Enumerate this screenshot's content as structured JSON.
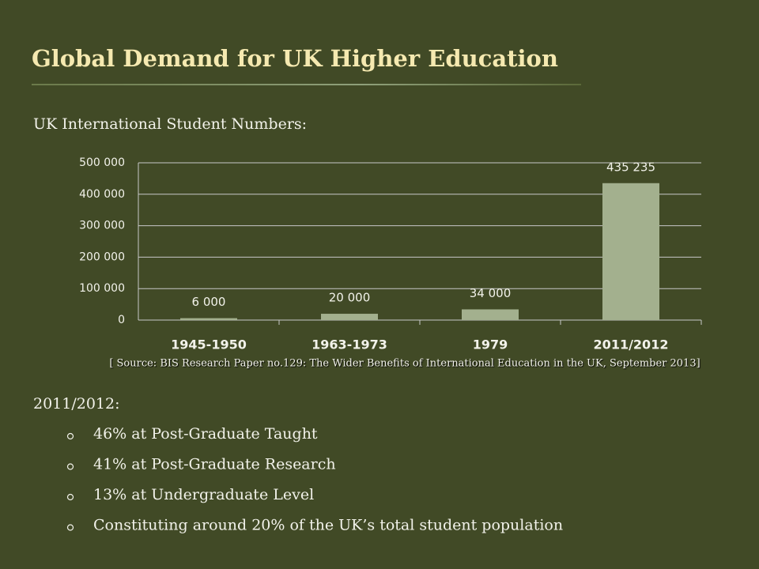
{
  "title": "Global Demand for UK Higher Education",
  "subtitle": "UK International Student Numbers:",
  "chart_data": {
    "type": "bar",
    "categories": [
      "1945-1950",
      "1963-1973",
      "1979",
      "2011/2012"
    ],
    "values": [
      6000,
      20000,
      34000,
      435235
    ],
    "value_labels": [
      "6 000",
      "20 000",
      "34 000",
      "435 235"
    ],
    "color": "#a3b08e",
    "ylim": [
      0,
      500000
    ],
    "yticks": [
      0,
      {
        "value": 100000,
        "label": "100 000"
      },
      {
        "value": 200000,
        "label": "200 000"
      },
      {
        "value": 300000,
        "label": "300 000"
      },
      {
        "value": 400000,
        "label": "400 000"
      },
      {
        "value": 500000,
        "label": "500 000"
      }
    ],
    "grid": true
  },
  "source": "[ Source: BIS Research Paper no.129: The Wider Benefits of International Education in the UK, September 2013]",
  "detail": {
    "heading": "2011/2012:",
    "bullets": [
      "46% at Post-Graduate Taught",
      "41% at Post-Graduate Research",
      "13% at Undergraduate Level",
      "Constituting around 20% of the UK’s total student population"
    ]
  }
}
